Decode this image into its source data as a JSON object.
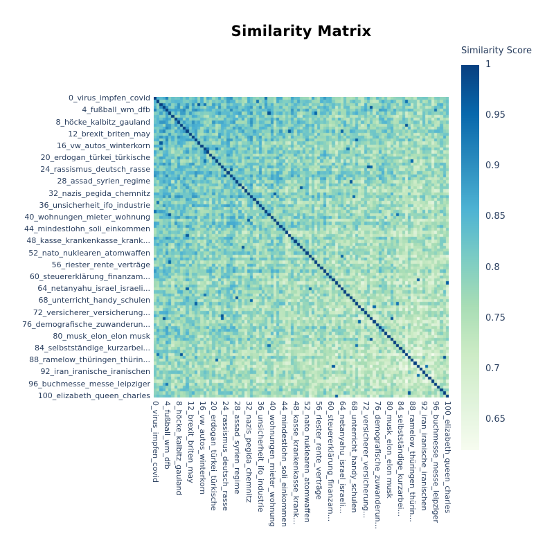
{
  "chart_data": {
    "type": "heatmap",
    "title": "Similarity Matrix",
    "axes": {
      "tick_labels": [
        "0_virus_impfen_covid",
        "4_fußball_wm_dfb",
        "8_höcke_kalbitz_gauland",
        "12_brexit_briten_may",
        "16_vw_autos_winterkorn",
        "20_erdogan_türkei_türkische",
        "24_rassismus_deutsch_rasse",
        "28_assad_syrien_regime",
        "32_nazis_pegida_chemnitz",
        "36_unsicherheit_ifo_industrie",
        "40_wohnungen_mieter_wohnung",
        "44_mindestlohn_soli_einkommen",
        "48_kasse_krankenkasse_krank...",
        "52_nato_nuklearen_atomwaffen",
        "56_riester_rente_verträge",
        "60_steuererklärung_finanzam...",
        "64_netanyahu_israel_israeli...",
        "68_unterricht_handy_schulen",
        "72_versicherer_versicherung...",
        "76_demografische_zuwanderun...",
        "80_musk_elon_elon musk",
        "84_selbstständige_kurzarbei...",
        "88_ramelow_thüringen_thürin...",
        "92_iran_iranische_iranischen",
        "96_buchmesse_messe_leipziger",
        "100_elizabeth_queen_charles"
      ],
      "tick_every": 4,
      "x_tick_rotation_deg": 90
    },
    "matrix": {
      "size": 101,
      "symmetric": true,
      "diagonal_value": 1.0,
      "offdiagonal_value_range": [
        0.63,
        0.97
      ],
      "note": "101x101 similarity matrix; off-diagonal cell values estimated from pixel colors and regenerated procedurally from the parameters below",
      "generation": {
        "seed": 11,
        "base_mean": 0.84,
        "index_drift": -0.13,
        "topic_spread": 0.1,
        "pair_noise": 0.12,
        "spike_probability": 0.006,
        "spike_base": 0.93,
        "clamp_min": 0.625,
        "clamp_max": 0.975
      }
    },
    "colorbar": {
      "title": "Similarity Score",
      "zmin": 0.62,
      "zmax": 1.0,
      "ticks": [
        {
          "label": "1",
          "value": 1.0
        },
        {
          "label": "0.95",
          "value": 0.95
        },
        {
          "label": "0.9",
          "value": 0.9
        },
        {
          "label": "0.85",
          "value": 0.85
        },
        {
          "label": "0.8",
          "value": 0.8
        },
        {
          "label": "0.75",
          "value": 0.75
        },
        {
          "label": "0.7",
          "value": 0.7
        },
        {
          "label": "0.65",
          "value": 0.65
        }
      ]
    },
    "colorscale": [
      {
        "t": 0.0,
        "color": "#f7fcf0"
      },
      {
        "t": 0.125,
        "color": "#e0f3db"
      },
      {
        "t": 0.25,
        "color": "#ccebc5"
      },
      {
        "t": 0.375,
        "color": "#a8ddb5"
      },
      {
        "t": 0.5,
        "color": "#7bccc4"
      },
      {
        "t": 0.625,
        "color": "#4eb3d3"
      },
      {
        "t": 0.75,
        "color": "#2b8cbe"
      },
      {
        "t": 0.875,
        "color": "#0868ac"
      },
      {
        "t": 1.0,
        "color": "#084081"
      }
    ],
    "colors": {
      "axis_text": "#2a3f5f",
      "title_text": "#000000",
      "background": "#ffffff"
    }
  }
}
